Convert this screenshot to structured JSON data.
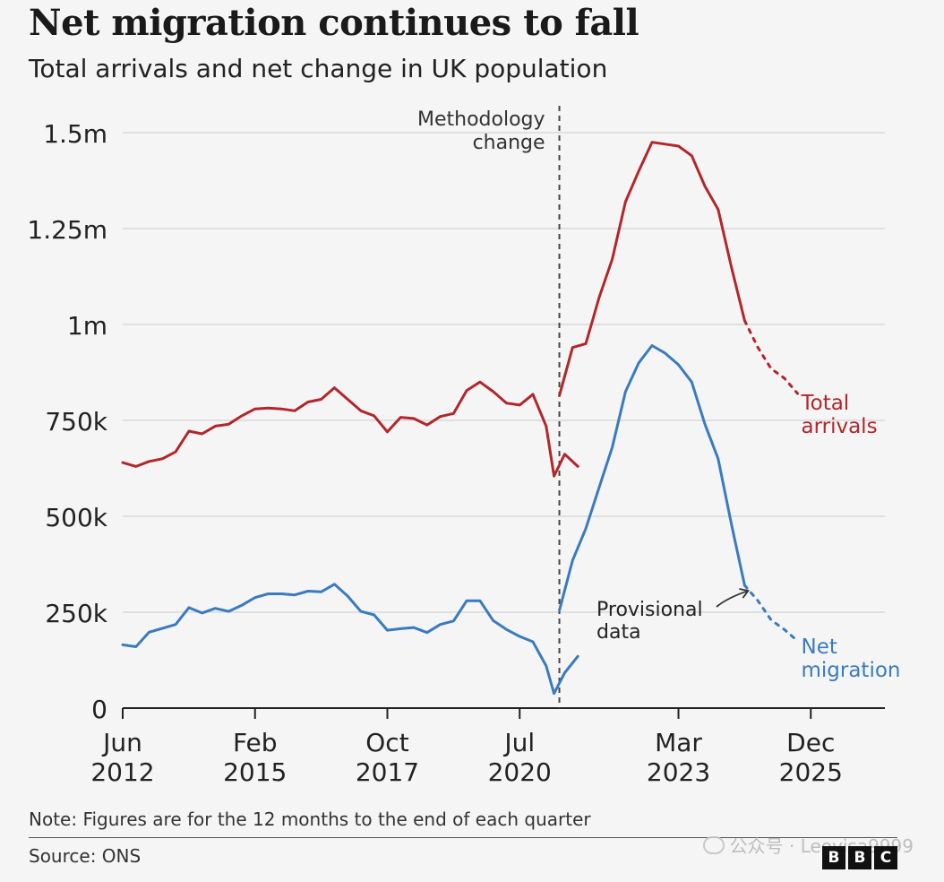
{
  "title": "Net migration continues to fall",
  "subtitle": "Total arrivals and net change in UK population",
  "note": "Note: Figures are for the 12 months to the end of each quarter",
  "source": "Source: ONS",
  "logo_letters": [
    "B",
    "B",
    "C"
  ],
  "watermark": "公众号 · Leovisa9999",
  "annotations": {
    "methodology": [
      "Methodology",
      "change"
    ],
    "provisional": [
      "Provisional",
      "data"
    ]
  },
  "chart_data": {
    "type": "line",
    "title": "Net migration continues to fall",
    "subtitle": "Total arrivals and net change in UK population",
    "ylim": [
      0,
      1500000
    ],
    "yticks": [
      {
        "value": 0,
        "label": "0"
      },
      {
        "value": 250000,
        "label": "250k"
      },
      {
        "value": 500000,
        "label": "500k"
      },
      {
        "value": 750000,
        "label": "750k"
      },
      {
        "value": 1000000,
        "label": "1m"
      },
      {
        "value": 1250000,
        "label": "1.25m"
      },
      {
        "value": 1500000,
        "label": "1.5m"
      }
    ],
    "xlim": [
      2012.5,
      2027.0
    ],
    "xticks": [
      {
        "value": 2012.5,
        "label": [
          "Jun",
          "2012"
        ]
      },
      {
        "value": 2015.0,
        "label": [
          "Feb",
          "2015"
        ]
      },
      {
        "value": 2017.5,
        "label": [
          "Oct",
          "2017"
        ]
      },
      {
        "value": 2020.0,
        "label": [
          "Jul",
          "2020"
        ]
      },
      {
        "value": 2023.0,
        "label": [
          "Mar",
          "2023"
        ]
      },
      {
        "value": 2025.5,
        "label": [
          "Dec",
          "2025"
        ]
      }
    ],
    "methodology_change_x": 2020.75,
    "grid": true,
    "series": [
      {
        "name": "Total arrivals",
        "label_lines": [
          "Total",
          "arrivals"
        ],
        "color": "#b3262b",
        "segments": [
          [
            [
              2012.5,
              640000
            ],
            [
              2012.75,
              630000
            ],
            [
              2013.0,
              643000
            ],
            [
              2013.25,
              650000
            ],
            [
              2013.5,
              668000
            ],
            [
              2013.75,
              722000
            ],
            [
              2014.0,
              715000
            ],
            [
              2014.25,
              735000
            ],
            [
              2014.5,
              740000
            ],
            [
              2014.75,
              762000
            ],
            [
              2015.0,
              780000
            ],
            [
              2015.25,
              782000
            ],
            [
              2015.5,
              780000
            ],
            [
              2015.75,
              775000
            ],
            [
              2016.0,
              798000
            ],
            [
              2016.25,
              805000
            ],
            [
              2016.5,
              835000
            ],
            [
              2016.75,
              805000
            ],
            [
              2017.0,
              775000
            ],
            [
              2017.25,
              762000
            ],
            [
              2017.5,
              720000
            ],
            [
              2017.75,
              758000
            ],
            [
              2018.0,
              755000
            ],
            [
              2018.25,
              738000
            ],
            [
              2018.5,
              760000
            ],
            [
              2018.75,
              768000
            ],
            [
              2019.0,
              828000
            ],
            [
              2019.25,
              850000
            ],
            [
              2019.5,
              825000
            ],
            [
              2019.75,
              795000
            ],
            [
              2020.0,
              790000
            ],
            [
              2020.25,
              818000
            ],
            [
              2020.5,
              735000
            ],
            [
              2020.65,
              605000
            ],
            [
              2020.85,
              662000
            ],
            [
              2021.1,
              630000
            ]
          ],
          [
            [
              2020.75,
              815000
            ],
            [
              2021.0,
              940000
            ],
            [
              2021.25,
              950000
            ],
            [
              2021.5,
              1070000
            ],
            [
              2021.75,
              1170000
            ],
            [
              2022.0,
              1320000
            ],
            [
              2022.25,
              1400000
            ],
            [
              2022.5,
              1475000
            ],
            [
              2022.75,
              1470000
            ],
            [
              2023.0,
              1465000
            ],
            [
              2023.25,
              1440000
            ],
            [
              2023.5,
              1360000
            ],
            [
              2023.75,
              1300000
            ],
            [
              2024.0,
              1150000
            ],
            [
              2024.25,
              1010000
            ]
          ]
        ],
        "provisional": [
          [
            2024.25,
            1010000
          ],
          [
            2024.5,
            940000
          ],
          [
            2024.75,
            885000
          ],
          [
            2025.0,
            860000
          ],
          [
            2025.25,
            820000
          ]
        ]
      },
      {
        "name": "Net migration",
        "label_lines": [
          "Net",
          "migration"
        ],
        "color": "#3a7bbf",
        "segments": [
          [
            [
              2012.5,
              165000
            ],
            [
              2012.75,
              160000
            ],
            [
              2013.0,
              198000
            ],
            [
              2013.25,
              208000
            ],
            [
              2013.5,
              218000
            ],
            [
              2013.75,
              262000
            ],
            [
              2014.0,
              248000
            ],
            [
              2014.25,
              260000
            ],
            [
              2014.5,
              252000
            ],
            [
              2014.75,
              268000
            ],
            [
              2015.0,
              288000
            ],
            [
              2015.25,
              298000
            ],
            [
              2015.5,
              298000
            ],
            [
              2015.75,
              295000
            ],
            [
              2016.0,
              305000
            ],
            [
              2016.25,
              303000
            ],
            [
              2016.5,
              323000
            ],
            [
              2016.75,
              292000
            ],
            [
              2017.0,
              252000
            ],
            [
              2017.25,
              243000
            ],
            [
              2017.5,
              203000
            ],
            [
              2017.75,
              207000
            ],
            [
              2018.0,
              210000
            ],
            [
              2018.25,
              197000
            ],
            [
              2018.5,
              218000
            ],
            [
              2018.75,
              227000
            ],
            [
              2019.0,
              280000
            ],
            [
              2019.25,
              280000
            ],
            [
              2019.5,
              228000
            ],
            [
              2019.75,
              205000
            ],
            [
              2020.0,
              187000
            ],
            [
              2020.25,
              173000
            ],
            [
              2020.5,
              110000
            ],
            [
              2020.65,
              38000
            ],
            [
              2020.85,
              92000
            ],
            [
              2021.1,
              135000
            ]
          ],
          [
            [
              2020.75,
              255000
            ],
            [
              2021.0,
              385000
            ],
            [
              2021.25,
              468000
            ],
            [
              2021.5,
              575000
            ],
            [
              2021.75,
              680000
            ],
            [
              2022.0,
              825000
            ],
            [
              2022.25,
              900000
            ],
            [
              2022.5,
              945000
            ],
            [
              2022.75,
              925000
            ],
            [
              2023.0,
              895000
            ],
            [
              2023.25,
              850000
            ],
            [
              2023.5,
              740000
            ],
            [
              2023.75,
              650000
            ],
            [
              2024.0,
              480000
            ],
            [
              2024.25,
              320000
            ]
          ]
        ],
        "provisional": [
          [
            2024.25,
            320000
          ],
          [
            2024.5,
            280000
          ],
          [
            2024.75,
            230000
          ],
          [
            2025.0,
            205000
          ],
          [
            2025.25,
            175000
          ]
        ]
      }
    ]
  }
}
